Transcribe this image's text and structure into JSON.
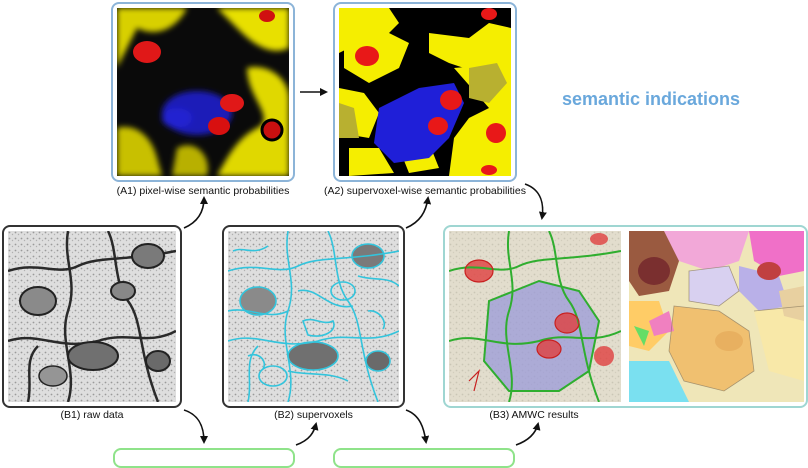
{
  "captions": {
    "a1": "(A1) pixel-wise semantic probabilities",
    "a2": "(A2) supervoxel-wise semantic probabilities",
    "b1": "(B1) raw data",
    "b2": "(B2) supervoxels",
    "b3": "(B3) AMWC results"
  },
  "side_label": "semantic indications",
  "colors": {
    "blue_frame": "#8cb4d8",
    "dark_frame": "#333333",
    "teal_frame": "#9fd6d2",
    "green_frame": "#8fe38a",
    "label_blue": "#6aa8dc"
  }
}
